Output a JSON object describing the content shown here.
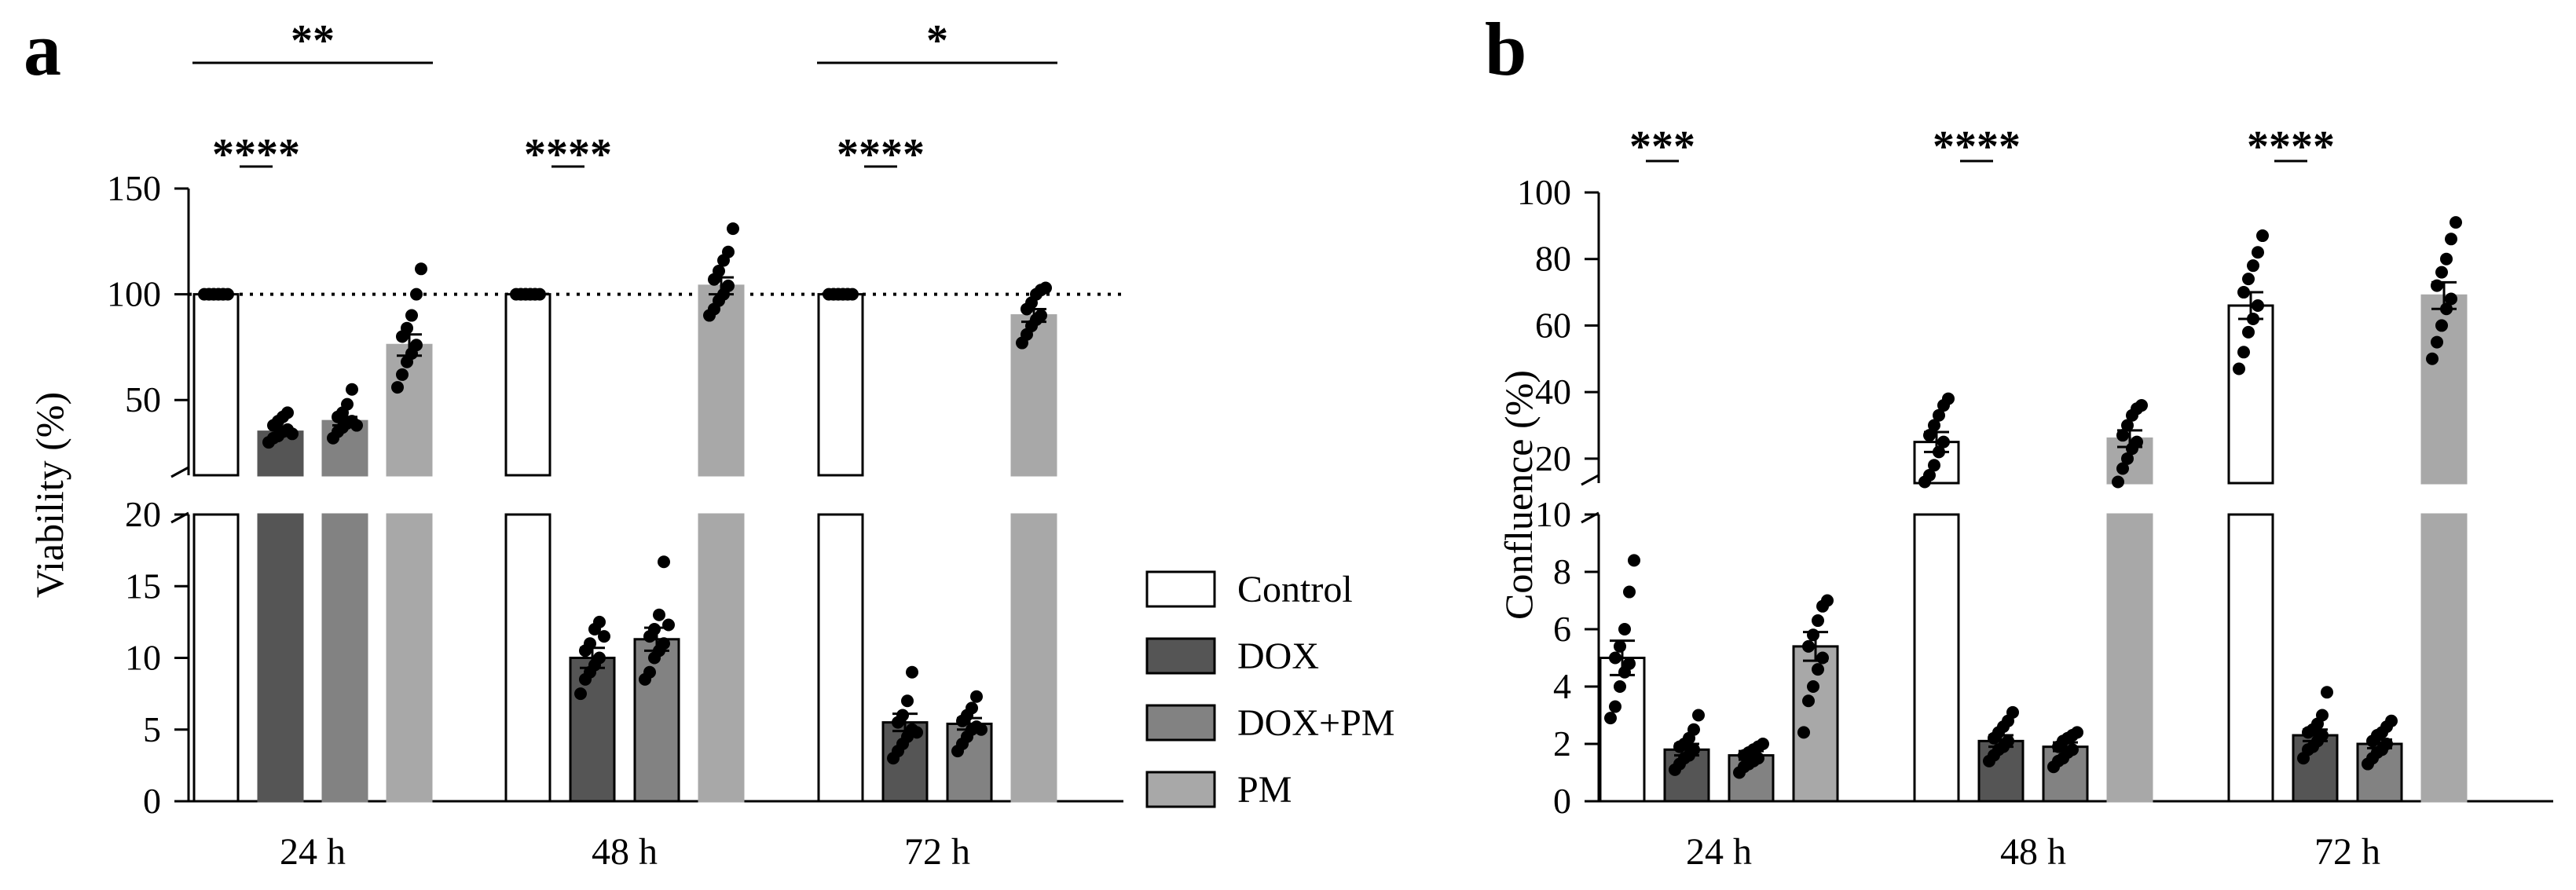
{
  "chart_data": [
    {
      "type": "bar",
      "panel_label": "a",
      "title": "",
      "xlabel": "",
      "ylabel": "Viability (%)",
      "categories": [
        "24 h",
        "48 h",
        "72 h"
      ],
      "axis_break": {
        "lower_range": [
          0,
          20
        ],
        "upper_range": [
          20,
          150
        ]
      },
      "lower_ticks": [
        "0",
        "5",
        "10",
        "15",
        "20"
      ],
      "upper_ticks": [
        "50",
        "100",
        "150"
      ],
      "lower_tick_values": [
        0,
        5,
        10,
        15,
        20
      ],
      "upper_tick_values": [
        50,
        100,
        150
      ],
      "reference_line": 100,
      "series": [
        {
          "name": "Control",
          "color": "#ffffff",
          "values": [
            100,
            100,
            100
          ],
          "sem": [
            0,
            0,
            0
          ],
          "points": [
            [
              100,
              100,
              100,
              100,
              100,
              100,
              100,
              100,
              100,
              100
            ],
            [
              100,
              100,
              100,
              100,
              100,
              100,
              100,
              100,
              100,
              100
            ],
            [
              100,
              100,
              100,
              100,
              100,
              100,
              100,
              100,
              100,
              100
            ]
          ]
        },
        {
          "name": "DOX",
          "color": "#555555",
          "values": [
            35,
            10.0,
            5.5
          ],
          "sem": [
            2,
            0.7,
            0.6
          ],
          "points": [
            [
              30,
              32,
              33,
              35,
              36,
              38,
              40,
              42,
              44,
              34
            ],
            [
              7.5,
              8.5,
              9,
              9.5,
              10,
              10.5,
              11,
              12,
              12.5,
              11.5
            ],
            [
              3,
              3.5,
              4,
              4.5,
              5,
              5.5,
              6,
              7,
              9,
              4.8
            ]
          ]
        },
        {
          "name": "DOX+PM",
          "color": "#828282",
          "values": [
            40,
            11.3,
            5.4
          ],
          "sem": [
            2,
            0.8,
            0.4
          ],
          "points": [
            [
              32,
              35,
              37,
              39,
              40,
              42,
              44,
              48,
              55,
              38
            ],
            [
              8.5,
              9,
              10,
              10.5,
              11,
              11.5,
              12,
              13,
              16.7,
              12.3
            ],
            [
              3.5,
              4,
              4.5,
              5,
              5.2,
              5.6,
              6,
              6.5,
              7.3,
              5
            ]
          ]
        },
        {
          "name": "PM",
          "color": "#a8a8a8",
          "values": [
            76,
            104,
            90
          ],
          "sem": [
            5,
            4,
            3
          ],
          "points": [
            [
              56,
              62,
              68,
              72,
              76,
              80,
              84,
              90,
              100,
              112
            ],
            [
              90,
              93,
              97,
              100,
              104,
              107,
              111,
              116,
              120,
              131
            ],
            [
              77,
              81,
              85,
              88,
              90,
              93,
              96,
              100,
              102,
              103
            ]
          ]
        }
      ],
      "significance": [
        {
          "label": "****",
          "category": "24 h",
          "between": [
            "Control",
            "DOX"
          ]
        },
        {
          "label": "**",
          "category": "24 h",
          "between": [
            "Control",
            "PM"
          ]
        },
        {
          "label": "****",
          "category": "48 h",
          "between": [
            "Control",
            "DOX"
          ]
        },
        {
          "label": "****",
          "category": "72 h",
          "between": [
            "Control",
            "DOX"
          ]
        },
        {
          "label": "*",
          "category": "72 h",
          "between": [
            "Control",
            "PM"
          ]
        }
      ],
      "legend": [
        "Control",
        "DOX",
        "DOX+PM",
        "PM"
      ],
      "legend_position": "right"
    },
    {
      "type": "bar",
      "panel_label": "b",
      "title": "",
      "xlabel": "",
      "ylabel": "Confluence (%)",
      "categories": [
        "24 h",
        "48 h",
        "72 h"
      ],
      "axis_break": {
        "lower_range": [
          0,
          10
        ],
        "upper_range": [
          15,
          100
        ]
      },
      "lower_ticks": [
        "0",
        "2",
        "4",
        "6",
        "8",
        "10"
      ],
      "upper_ticks": [
        "20",
        "40",
        "60",
        "80",
        "100"
      ],
      "lower_tick_values": [
        0,
        2,
        4,
        6,
        8,
        10
      ],
      "upper_tick_values": [
        20,
        40,
        60,
        80,
        100
      ],
      "series": [
        {
          "name": "Control",
          "color": "#ffffff",
          "values": [
            5.0,
            25,
            66
          ],
          "sem": [
            0.6,
            3,
            4
          ],
          "points": [
            [
              2.9,
              3.3,
              4,
              4.5,
              4.8,
              5,
              5.4,
              6,
              7.3,
              8.4
            ],
            [
              13,
              15,
              18,
              22,
              25,
              27,
              30,
              33,
              36,
              38
            ],
            [
              47,
              52,
              58,
              62,
              66,
              70,
              74,
              78,
              82,
              87
            ]
          ]
        },
        {
          "name": "DOX",
          "color": "#555555",
          "values": [
            1.8,
            2.1,
            2.3
          ],
          "sem": [
            0.2,
            0.2,
            0.2
          ],
          "points": [
            [
              1.1,
              1.3,
              1.5,
              1.6,
              1.8,
              1.9,
              2,
              2.2,
              2.5,
              3
            ],
            [
              1.4,
              1.6,
              1.8,
              1.9,
              2.1,
              2.2,
              2.4,
              2.6,
              2.8,
              3.1
            ],
            [
              1.5,
              1.8,
              1.9,
              2.1,
              2.3,
              2.4,
              2.5,
              2.7,
              3,
              3.8
            ]
          ]
        },
        {
          "name": "DOX+PM",
          "color": "#828282",
          "values": [
            1.6,
            1.9,
            2.0
          ],
          "sem": [
            0.15,
            0.15,
            0.15
          ],
          "points": [
            [
              1,
              1.2,
              1.3,
              1.4,
              1.5,
              1.6,
              1.7,
              1.8,
              1.9,
              2
            ],
            [
              1.2,
              1.4,
              1.5,
              1.7,
              1.8,
              1.9,
              2.1,
              2.2,
              2.3,
              2.4
            ],
            [
              1.3,
              1.5,
              1.7,
              1.8,
              2,
              2.1,
              2.3,
              2.4,
              2.6,
              2.8
            ]
          ]
        },
        {
          "name": "PM",
          "color": "#a8a8a8",
          "values": [
            5.4,
            26,
            69
          ],
          "sem": [
            0.5,
            2.5,
            4
          ],
          "points": [
            [
              2.4,
              3.5,
              4,
              4.6,
              5,
              5.4,
              5.8,
              6.3,
              6.8,
              7
            ],
            [
              13,
              17,
              20,
              23,
              25,
              27,
              30,
              33,
              35,
              36
            ],
            [
              50,
              55,
              60,
              65,
              68,
              72,
              76,
              80,
              86,
              91
            ]
          ]
        }
      ],
      "significance": [
        {
          "label": "***",
          "category": "24 h",
          "between": [
            "Control",
            "DOX"
          ]
        },
        {
          "label": "****",
          "category": "48 h",
          "between": [
            "Control",
            "DOX"
          ]
        },
        {
          "label": "****",
          "category": "72 h",
          "between": [
            "Control",
            "DOX"
          ]
        }
      ]
    }
  ]
}
